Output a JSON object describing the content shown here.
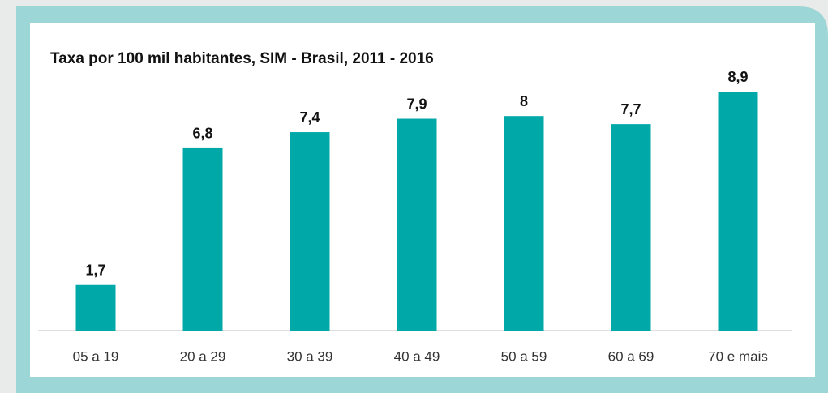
{
  "chart_data": {
    "type": "bar",
    "title": "Taxa por 100 mil habitantes, SIM - Brasil, 2011 - 2016",
    "categories": [
      "05 a 19",
      "20 a 29",
      "30 a 39",
      "40 a 49",
      "50 a 59",
      "60 a 69",
      "70 e mais"
    ],
    "values": [
      1.7,
      6.8,
      7.4,
      7.9,
      8,
      7.7,
      8.9
    ],
    "value_labels": [
      "1,7",
      "6,8",
      "7,4",
      "7,9",
      "8",
      "7,7",
      "8,9"
    ],
    "color": "#00a8a8",
    "ylim": [
      0,
      10
    ]
  }
}
